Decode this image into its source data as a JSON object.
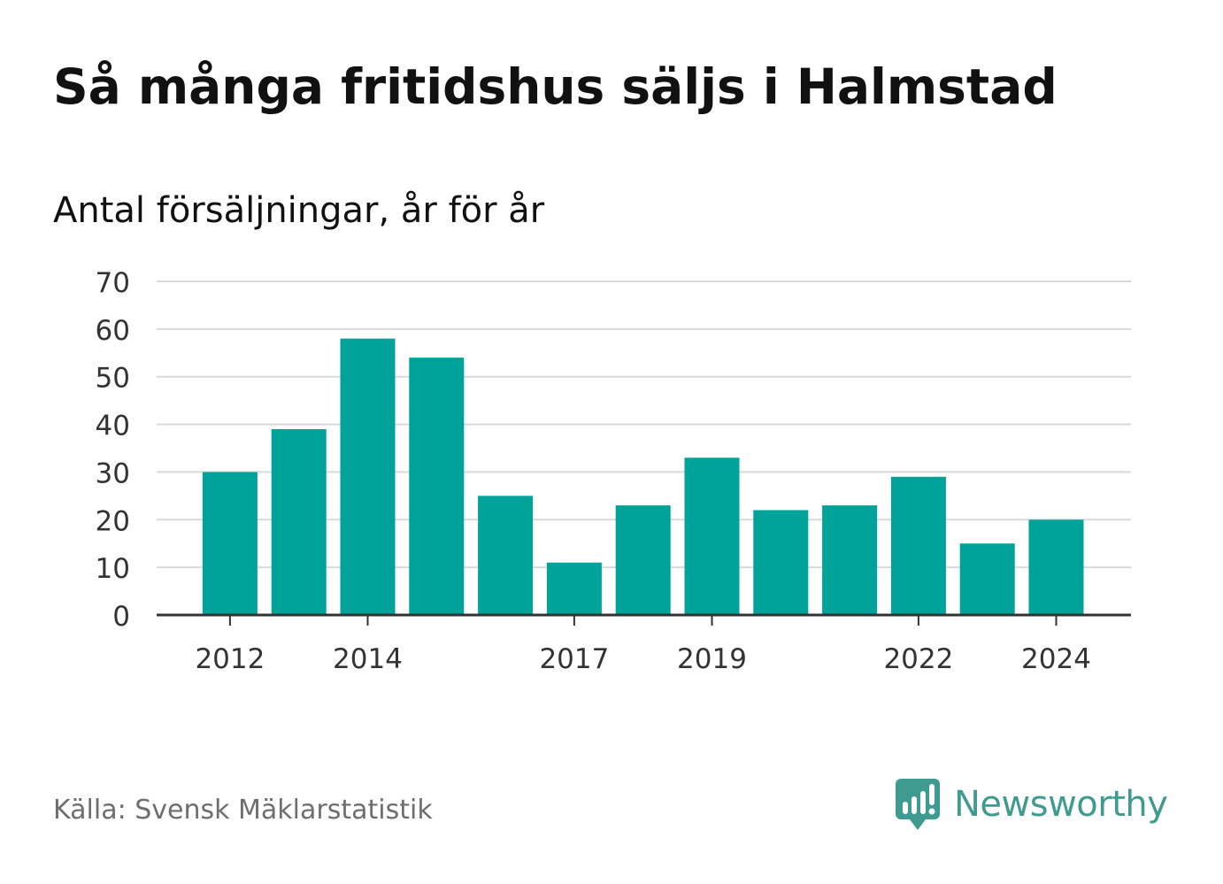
{
  "title": "Så många fritidshus säljs i Halmstad",
  "subtitle": "Antal försäljningar, år för år",
  "source": "Källa: Svensk Mäklarstatistik",
  "brand": {
    "name": "Newsworthy",
    "icon": "newsworthy-logo-icon",
    "color": "#3f9a8f"
  },
  "colors": {
    "bar": "#00a39a",
    "grid": "#d9d9d9",
    "axis": "#333333",
    "tick_text": "#333333"
  },
  "chart_data": {
    "type": "bar",
    "categories": [
      "2012",
      "2013",
      "2014",
      "2015",
      "2016",
      "2017",
      "2018",
      "2019",
      "2020",
      "2021",
      "2022",
      "2023",
      "2024"
    ],
    "values": [
      30,
      39,
      58,
      54,
      25,
      11,
      23,
      33,
      22,
      23,
      29,
      15,
      20
    ],
    "x_tick_labels": [
      "2012",
      "2014",
      "2017",
      "2019",
      "2022",
      "2024"
    ],
    "y_ticks": [
      0,
      10,
      20,
      30,
      40,
      50,
      60,
      70
    ],
    "ylim": [
      0,
      70
    ],
    "grid": true,
    "xlabel": "",
    "ylabel": ""
  }
}
